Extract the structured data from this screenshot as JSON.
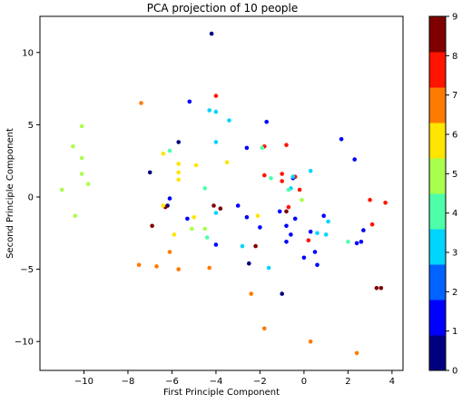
{
  "chart_data": {
    "type": "scatter",
    "title": "PCA projection of 10 people",
    "xlabel": "First Principle Component",
    "ylabel": "Second Principle Component",
    "xlim": [
      -12,
      4.5
    ],
    "ylim": [
      -12,
      12.5
    ],
    "xticks": [
      -10,
      -8,
      -6,
      -4,
      -2,
      0,
      2,
      4
    ],
    "yticks": [
      -10,
      -5,
      0,
      5,
      10
    ],
    "grid": false,
    "colormap": "jet",
    "colorbar": {
      "min": 0,
      "max": 9,
      "ticks": [
        0,
        1,
        2,
        3,
        4,
        5,
        6,
        7,
        8,
        9
      ]
    },
    "class_colors": [
      "#00007f",
      "#0000ff",
      "#0063ff",
      "#00d5ff",
      "#4effa9",
      "#a9ff4e",
      "#ffe500",
      "#ff7a00",
      "#ff1400",
      "#7f0000"
    ],
    "points": [
      {
        "x": -10.5,
        "y": 3.5,
        "c": 5
      },
      {
        "x": -10.1,
        "y": 4.9,
        "c": 5
      },
      {
        "x": -10.1,
        "y": 2.7,
        "c": 5
      },
      {
        "x": -10.1,
        "y": 1.6,
        "c": 5
      },
      {
        "x": -9.8,
        "y": 0.9,
        "c": 5
      },
      {
        "x": -11.0,
        "y": 0.5,
        "c": 5
      },
      {
        "x": -10.4,
        "y": -1.3,
        "c": 5
      },
      {
        "x": -7.4,
        "y": 6.5,
        "c": 7
      },
      {
        "x": -7.5,
        "y": -4.7,
        "c": 7
      },
      {
        "x": -6.7,
        "y": -4.8,
        "c": 7
      },
      {
        "x": -6.1,
        "y": -3.8,
        "c": 7
      },
      {
        "x": -5.7,
        "y": -5.0,
        "c": 7
      },
      {
        "x": -4.3,
        "y": -4.9,
        "c": 7
      },
      {
        "x": -2.4,
        "y": -6.7,
        "c": 7
      },
      {
        "x": -1.8,
        "y": -9.1,
        "c": 7
      },
      {
        "x": 0.3,
        "y": -10.0,
        "c": 7
      },
      {
        "x": 2.4,
        "y": -10.8,
        "c": 7
      },
      {
        "x": -4.2,
        "y": 11.3,
        "c": 0
      },
      {
        "x": -7.0,
        "y": 1.7,
        "c": 0
      },
      {
        "x": -5.7,
        "y": 3.8,
        "c": 0
      },
      {
        "x": -6.2,
        "y": -0.6,
        "c": 0
      },
      {
        "x": -2.5,
        "y": -4.6,
        "c": 0
      },
      {
        "x": -1.0,
        "y": -6.7,
        "c": 0
      },
      {
        "x": -4.0,
        "y": 7.0,
        "c": 8
      },
      {
        "x": -1.8,
        "y": 3.5,
        "c": 8
      },
      {
        "x": -1.8,
        "y": 1.5,
        "c": 8
      },
      {
        "x": -0.8,
        "y": 3.6,
        "c": 8
      },
      {
        "x": -1.0,
        "y": 1.6,
        "c": 8
      },
      {
        "x": -1.0,
        "y": 1.1,
        "c": 8
      },
      {
        "x": -0.4,
        "y": 1.4,
        "c": 8
      },
      {
        "x": -0.2,
        "y": 0.5,
        "c": 8
      },
      {
        "x": -0.7,
        "y": -0.7,
        "c": 8
      },
      {
        "x": 3.0,
        "y": -0.2,
        "c": 8
      },
      {
        "x": 3.7,
        "y": -0.4,
        "c": 8
      },
      {
        "x": 3.1,
        "y": -1.9,
        "c": 8
      },
      {
        "x": 0.2,
        "y": -3.0,
        "c": 8
      },
      {
        "x": -4.1,
        "y": -0.6,
        "c": 9
      },
      {
        "x": -3.8,
        "y": -0.8,
        "c": 9
      },
      {
        "x": -6.9,
        "y": -2.0,
        "c": 9
      },
      {
        "x": -6.3,
        "y": -0.7,
        "c": 9
      },
      {
        "x": -2.2,
        "y": -3.4,
        "c": 9
      },
      {
        "x": 3.3,
        "y": -6.3,
        "c": 9
      },
      {
        "x": 3.5,
        "y": -6.3,
        "c": 9
      },
      {
        "x": -0.8,
        "y": -1.0,
        "c": 9
      },
      {
        "x": -5.2,
        "y": 6.6,
        "c": 1
      },
      {
        "x": -1.7,
        "y": 5.2,
        "c": 1
      },
      {
        "x": -2.6,
        "y": 3.4,
        "c": 1
      },
      {
        "x": -6.1,
        "y": -0.1,
        "c": 1
      },
      {
        "x": -5.3,
        "y": -1.5,
        "c": 1
      },
      {
        "x": -4.0,
        "y": -3.3,
        "c": 1
      },
      {
        "x": -3.0,
        "y": -0.6,
        "c": 1
      },
      {
        "x": -2.6,
        "y": -1.4,
        "c": 1
      },
      {
        "x": -2.0,
        "y": -2.1,
        "c": 1
      },
      {
        "x": -1.1,
        "y": -1.0,
        "c": 1
      },
      {
        "x": -0.8,
        "y": -2.0,
        "c": 1
      },
      {
        "x": -0.6,
        "y": -2.6,
        "c": 1
      },
      {
        "x": -0.4,
        "y": -1.5,
        "c": 1
      },
      {
        "x": -0.8,
        "y": -3.1,
        "c": 1
      },
      {
        "x": -0.5,
        "y": 1.3,
        "c": 1
      },
      {
        "x": 0.0,
        "y": -4.2,
        "c": 1
      },
      {
        "x": 0.3,
        "y": -2.4,
        "c": 1
      },
      {
        "x": 0.5,
        "y": -3.8,
        "c": 1
      },
      {
        "x": 0.6,
        "y": -4.7,
        "c": 1
      },
      {
        "x": 0.9,
        "y": -1.3,
        "c": 1
      },
      {
        "x": 1.7,
        "y": 4.0,
        "c": 1
      },
      {
        "x": 2.3,
        "y": 2.6,
        "c": 1
      },
      {
        "x": 2.7,
        "y": -2.3,
        "c": 1
      },
      {
        "x": 2.4,
        "y": -3.2,
        "c": 1
      },
      {
        "x": 2.6,
        "y": -3.1,
        "c": 1
      },
      {
        "x": -4.3,
        "y": 6.0,
        "c": 3
      },
      {
        "x": -4.0,
        "y": 5.9,
        "c": 3
      },
      {
        "x": -3.4,
        "y": 5.3,
        "c": 3
      },
      {
        "x": -4.0,
        "y": 3.8,
        "c": 3
      },
      {
        "x": -4.0,
        "y": -1.1,
        "c": 3
      },
      {
        "x": -2.8,
        "y": -3.4,
        "c": 3
      },
      {
        "x": -1.6,
        "y": -4.9,
        "c": 3
      },
      {
        "x": -0.6,
        "y": 0.6,
        "c": 3
      },
      {
        "x": -0.5,
        "y": 1.4,
        "c": 3
      },
      {
        "x": 0.3,
        "y": 1.8,
        "c": 3
      },
      {
        "x": 0.6,
        "y": -2.5,
        "c": 3
      },
      {
        "x": 1.1,
        "y": -1.7,
        "c": 3
      },
      {
        "x": 1.0,
        "y": -2.6,
        "c": 3
      },
      {
        "x": -6.1,
        "y": 3.2,
        "c": 4
      },
      {
        "x": -4.5,
        "y": 0.6,
        "c": 4
      },
      {
        "x": -4.4,
        "y": -2.8,
        "c": 4
      },
      {
        "x": -1.5,
        "y": 1.3,
        "c": 4
      },
      {
        "x": -1.9,
        "y": 3.4,
        "c": 4
      },
      {
        "x": -0.7,
        "y": 0.5,
        "c": 4
      },
      {
        "x": 2.0,
        "y": -3.1,
        "c": 4
      },
      {
        "x": -5.7,
        "y": 1.7,
        "c": 6
      },
      {
        "x": -5.7,
        "y": 2.3,
        "c": 6
      },
      {
        "x": -5.7,
        "y": 1.2,
        "c": 6
      },
      {
        "x": -4.9,
        "y": 2.2,
        "c": 6
      },
      {
        "x": -6.4,
        "y": 3.0,
        "c": 6
      },
      {
        "x": -6.4,
        "y": -0.6,
        "c": 6
      },
      {
        "x": -5.9,
        "y": -2.6,
        "c": 6
      },
      {
        "x": -5.0,
        "y": -1.4,
        "c": 6
      },
      {
        "x": -3.5,
        "y": 2.4,
        "c": 6
      },
      {
        "x": -2.1,
        "y": -1.3,
        "c": 6
      },
      {
        "x": -5.1,
        "y": -2.2,
        "c": 5
      },
      {
        "x": -4.5,
        "y": -2.2,
        "c": 5
      },
      {
        "x": -0.1,
        "y": -0.2,
        "c": 5
      }
    ]
  }
}
